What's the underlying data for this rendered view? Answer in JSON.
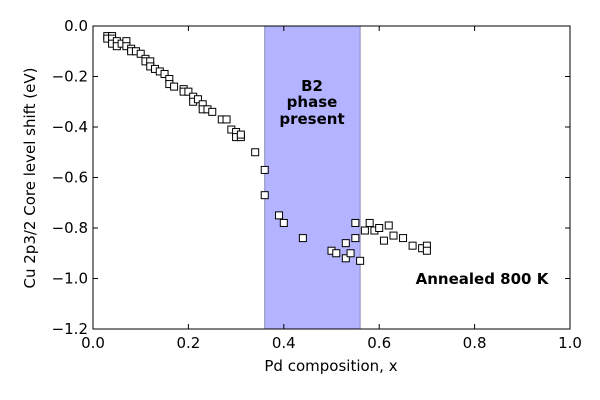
{
  "chart_data": {
    "type": "scatter",
    "title": "",
    "xlabel": "Pd composition, x",
    "ylabel": "Cu 2p3/2 Core level shift (eV)",
    "xlim": [
      0.0,
      1.0
    ],
    "ylim": [
      -1.2,
      0.0
    ],
    "xticks": [
      "0.0",
      "0.2",
      "0.4",
      "0.6",
      "0.8",
      "1.0"
    ],
    "yticks": [
      "0.0",
      "−0.2",
      "−0.4",
      "−0.6",
      "−0.8",
      "−1.0",
      "−1.2"
    ],
    "grid": false,
    "marker": "open-square",
    "shaded_region": {
      "x_start": 0.36,
      "x_end": 0.56,
      "color": "#b3b3ff"
    },
    "annotations": {
      "phase_line1": "B2",
      "phase_line2": "phase",
      "phase_line3": "present",
      "annealed": "Annealed 800 K"
    },
    "points": [
      [
        0.03,
        -0.04
      ],
      [
        0.03,
        -0.05
      ],
      [
        0.04,
        -0.04
      ],
      [
        0.04,
        -0.05
      ],
      [
        0.04,
        -0.07
      ],
      [
        0.05,
        -0.06
      ],
      [
        0.05,
        -0.08
      ],
      [
        0.06,
        -0.07
      ],
      [
        0.07,
        -0.06
      ],
      [
        0.07,
        -0.08
      ],
      [
        0.08,
        -0.09
      ],
      [
        0.08,
        -0.1
      ],
      [
        0.09,
        -0.1
      ],
      [
        0.1,
        -0.11
      ],
      [
        0.11,
        -0.13
      ],
      [
        0.11,
        -0.14
      ],
      [
        0.12,
        -0.14
      ],
      [
        0.12,
        -0.16
      ],
      [
        0.13,
        -0.17
      ],
      [
        0.14,
        -0.18
      ],
      [
        0.15,
        -0.19
      ],
      [
        0.16,
        -0.21
      ],
      [
        0.16,
        -0.23
      ],
      [
        0.17,
        -0.24
      ],
      [
        0.19,
        -0.25
      ],
      [
        0.19,
        -0.26
      ],
      [
        0.2,
        -0.26
      ],
      [
        0.21,
        -0.28
      ],
      [
        0.21,
        -0.3
      ],
      [
        0.22,
        -0.29
      ],
      [
        0.23,
        -0.31
      ],
      [
        0.23,
        -0.33
      ],
      [
        0.24,
        -0.33
      ],
      [
        0.25,
        -0.34
      ],
      [
        0.27,
        -0.37
      ],
      [
        0.28,
        -0.37
      ],
      [
        0.29,
        -0.41
      ],
      [
        0.3,
        -0.42
      ],
      [
        0.3,
        -0.44
      ],
      [
        0.31,
        -0.44
      ],
      [
        0.31,
        -0.43
      ],
      [
        0.34,
        -0.5
      ],
      [
        0.36,
        -0.57
      ],
      [
        0.36,
        -0.67
      ],
      [
        0.39,
        -0.75
      ],
      [
        0.4,
        -0.78
      ],
      [
        0.44,
        -0.84
      ],
      [
        0.5,
        -0.89
      ],
      [
        0.51,
        -0.9
      ],
      [
        0.53,
        -0.86
      ],
      [
        0.53,
        -0.92
      ],
      [
        0.54,
        -0.9
      ],
      [
        0.55,
        -0.78
      ],
      [
        0.55,
        -0.84
      ],
      [
        0.56,
        -0.93
      ],
      [
        0.57,
        -0.81
      ],
      [
        0.58,
        -0.78
      ],
      [
        0.59,
        -0.81
      ],
      [
        0.6,
        -0.8
      ],
      [
        0.61,
        -0.85
      ],
      [
        0.62,
        -0.79
      ],
      [
        0.63,
        -0.83
      ],
      [
        0.65,
        -0.84
      ],
      [
        0.67,
        -0.87
      ],
      [
        0.69,
        -0.88
      ],
      [
        0.7,
        -0.87
      ],
      [
        0.7,
        -0.89
      ]
    ]
  }
}
